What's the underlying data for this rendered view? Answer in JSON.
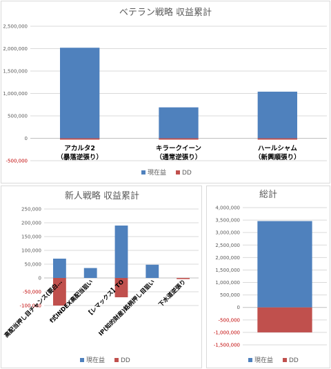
{
  "colors": {
    "current": "#4f81bd",
    "dd": "#c0504d",
    "negative_tick": "#c00000"
  },
  "chart_data": [
    {
      "type": "bar",
      "title": "ベテラン戦略 収益累計",
      "categories": [
        [
          "アカルタ2",
          "（暴落逆張り）"
        ],
        [
          "キラークイーン",
          "（通常逆張り）"
        ],
        [
          "ハールシャム",
          "（新興順張り）"
        ]
      ],
      "series": [
        {
          "name": "現在益",
          "values": [
            2020000,
            690000,
            1040000
          ]
        },
        {
          "name": "DD",
          "values": [
            -30000,
            -30000,
            -30000
          ]
        }
      ],
      "ylim": [
        -500000,
        2500000
      ],
      "yticks": [
        "2,500,000",
        "2,000,000",
        "1,500,000",
        "1,000,000",
        "500,000",
        "0",
        "-500,000"
      ],
      "legend": "bottom",
      "grid": true
    },
    {
      "type": "bar",
      "title": "新人戦略 収益累計",
      "categories": [
        "高配当押し目チャンス(要白…",
        "f式INDEX高配当狙い",
        "【レマックス】TO",
        "IP(知的財産)銘柄押し目狙い",
        "下水道逆張り"
      ],
      "series": [
        {
          "name": "現在益",
          "values": [
            70000,
            36000,
            190000,
            48000,
            0
          ]
        },
        {
          "name": "DD",
          "values": [
            -100000,
            0,
            -70000,
            0,
            -4000
          ]
        }
      ],
      "ylim": [
        -100000,
        250000
      ],
      "yticks": [
        "250,000",
        "200,000",
        "150,000",
        "100,000",
        "50,000",
        "0",
        "-50,000",
        "-100,000"
      ],
      "legend": "bottom",
      "grid": true
    },
    {
      "type": "bar",
      "title": "総計",
      "categories": [
        ""
      ],
      "series": [
        {
          "name": "現在益",
          "values": [
            3460000
          ]
        },
        {
          "name": "DD",
          "values": [
            -1000000
          ]
        }
      ],
      "ylim": [
        -1500000,
        4000000
      ],
      "yticks": [
        "4,000,000",
        "3,500,000",
        "3,000,000",
        "2,500,000",
        "2,000,000",
        "1,500,000",
        "1,000,000",
        "500,000",
        "0",
        "-500,000",
        "-1,000,000",
        "-1,500,000"
      ],
      "legend": "bottom",
      "grid": true
    }
  ]
}
